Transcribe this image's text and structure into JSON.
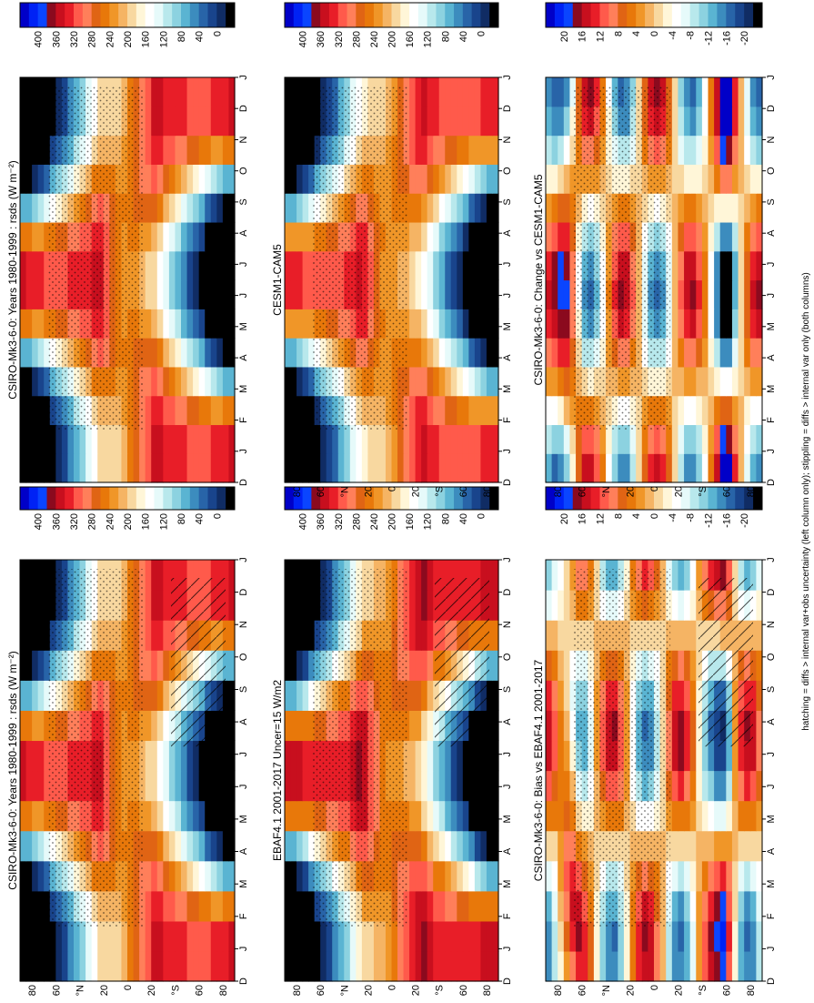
{
  "figure": {
    "footnote": "hatching = diffs > internal var+obs uncertainty (left column only); stippling = diffs > internal var only (both columns)"
  },
  "colorbars": {
    "absolute": {
      "labels": [
        "400",
        "360",
        "320",
        "280",
        "240",
        "200",
        "160",
        "120",
        "80",
        "40",
        "0"
      ],
      "colors": [
        "#0000c8",
        "#0022f5",
        "#0a45ff",
        "#8b0a1e",
        "#c80f1e",
        "#e81e28",
        "#ff5a4b",
        "#ff7f5a",
        "#e06414",
        "#e8780a",
        "#f09628",
        "#f5b464",
        "#f8d8a0",
        "#fff6d8",
        "#ffffff",
        "#e6fafa",
        "#b8e8ec",
        "#8cd2e0",
        "#5ab4d2",
        "#3c8cbe",
        "#2864a8",
        "#19448c",
        "#102c64",
        "#000000"
      ]
    },
    "difference": {
      "labels": [
        "20",
        "16",
        "12",
        "8",
        "4",
        "0",
        "-4",
        "-8",
        "-12",
        "-16",
        "-20"
      ],
      "colors": [
        "#0000c8",
        "#0022f5",
        "#0a45ff",
        "#8b0a1e",
        "#c80f1e",
        "#e81e28",
        "#ff5a4b",
        "#ff7f5a",
        "#e06414",
        "#e8780a",
        "#f09628",
        "#f5b464",
        "#f8d8a0",
        "#fff6d8",
        "#ffffff",
        "#e6fafa",
        "#b8e8ec",
        "#8cd2e0",
        "#5ab4d2",
        "#3c8cbe",
        "#2864a8",
        "#19448c",
        "#102c64",
        "#000000"
      ]
    }
  },
  "chart_data": [
    {
      "type": "heatmap",
      "title": "CSIRO-Mk3-6-0: Years 1980-1999 : rsds (W m⁻²)",
      "months": [
        "D",
        "J",
        "F",
        "M",
        "A",
        "M",
        "J",
        "J",
        "A",
        "S",
        "O",
        "N",
        "D",
        "J"
      ],
      "lat_ticks": [
        "80",
        "60",
        "°N",
        "20",
        "0",
        "20",
        "°S",
        "60",
        "80"
      ],
      "colorbar_labels": [
        "400",
        "360",
        "320",
        "280",
        "240",
        "200",
        "160",
        "120",
        "80",
        "40",
        "0"
      ],
      "zlim": [
        0,
        400
      ]
    },
    {
      "type": "heatmap",
      "title": "CSIRO-Mk3-6-0: Years 1980-1999 : rsds (W m⁻²)",
      "months": [
        "D",
        "J",
        "F",
        "M",
        "A",
        "M",
        "J",
        "J",
        "A",
        "S",
        "O",
        "N",
        "D",
        "J"
      ],
      "lat_ticks": [
        "80",
        "60",
        "°N",
        "20",
        "0",
        "20",
        "°S",
        "60",
        "80"
      ],
      "colorbar_labels": [
        "400",
        "360",
        "320",
        "280",
        "240",
        "200",
        "160",
        "120",
        "80",
        "40",
        "0"
      ],
      "zlim": [
        0,
        400
      ]
    },
    {
      "type": "heatmap",
      "title": "EBAF4.1 2001-2017 Uncer=15 W/m2",
      "months": [
        "D",
        "J",
        "F",
        "M",
        "A",
        "M",
        "J",
        "J",
        "A",
        "S",
        "O",
        "N",
        "D",
        "J"
      ],
      "lat_ticks": [
        "80",
        "60",
        "°N",
        "20",
        "0",
        "20",
        "°S",
        "60",
        "80"
      ],
      "colorbar_labels": [
        "400",
        "360",
        "320",
        "280",
        "240",
        "200",
        "160",
        "120",
        "80",
        "40",
        "0"
      ],
      "zlim": [
        0,
        400
      ]
    },
    {
      "type": "heatmap",
      "title": "CESM1-CAM5",
      "months": [
        "D",
        "J",
        "F",
        "M",
        "A",
        "M",
        "J",
        "J",
        "A",
        "S",
        "O",
        "N",
        "D",
        "J"
      ],
      "lat_ticks": [
        "80",
        "60",
        "°N",
        "20",
        "0",
        "20",
        "°S",
        "60",
        "80"
      ],
      "colorbar_labels": [
        "400",
        "360",
        "320",
        "280",
        "240",
        "200",
        "160",
        "120",
        "80",
        "40",
        "0"
      ],
      "zlim": [
        0,
        400
      ]
    },
    {
      "type": "heatmap",
      "title": "CSIRO-Mk3-6-0: Bias vs EBAF4.1 2001-2017",
      "months": [
        "D",
        "J",
        "F",
        "M",
        "A",
        "M",
        "J",
        "J",
        "A",
        "S",
        "O",
        "N",
        "D",
        "J"
      ],
      "lat_ticks": [
        "80",
        "60",
        "°N",
        "20",
        "0",
        "20",
        "°S",
        "60",
        "80"
      ],
      "colorbar_labels": [
        "20",
        "16",
        "12",
        "8",
        "4",
        "0",
        "-4",
        "-8",
        "-12",
        "-16",
        "-20"
      ],
      "zlim": [
        -20,
        20
      ]
    },
    {
      "type": "heatmap",
      "title": "CSIRO-Mk3-6-0: Change vs CESM1-CAM5",
      "months": [
        "D",
        "J",
        "F",
        "M",
        "A",
        "M",
        "J",
        "J",
        "A",
        "S",
        "O",
        "N",
        "D",
        "J"
      ],
      "lat_ticks": [
        "80",
        "60",
        "°N",
        "20",
        "0",
        "20",
        "°S",
        "60",
        "80"
      ],
      "colorbar_labels": [
        "20",
        "16",
        "12",
        "8",
        "4",
        "0",
        "-4",
        "-8",
        "-12",
        "-16",
        "-20"
      ],
      "zlim": [
        -20,
        20
      ]
    }
  ]
}
